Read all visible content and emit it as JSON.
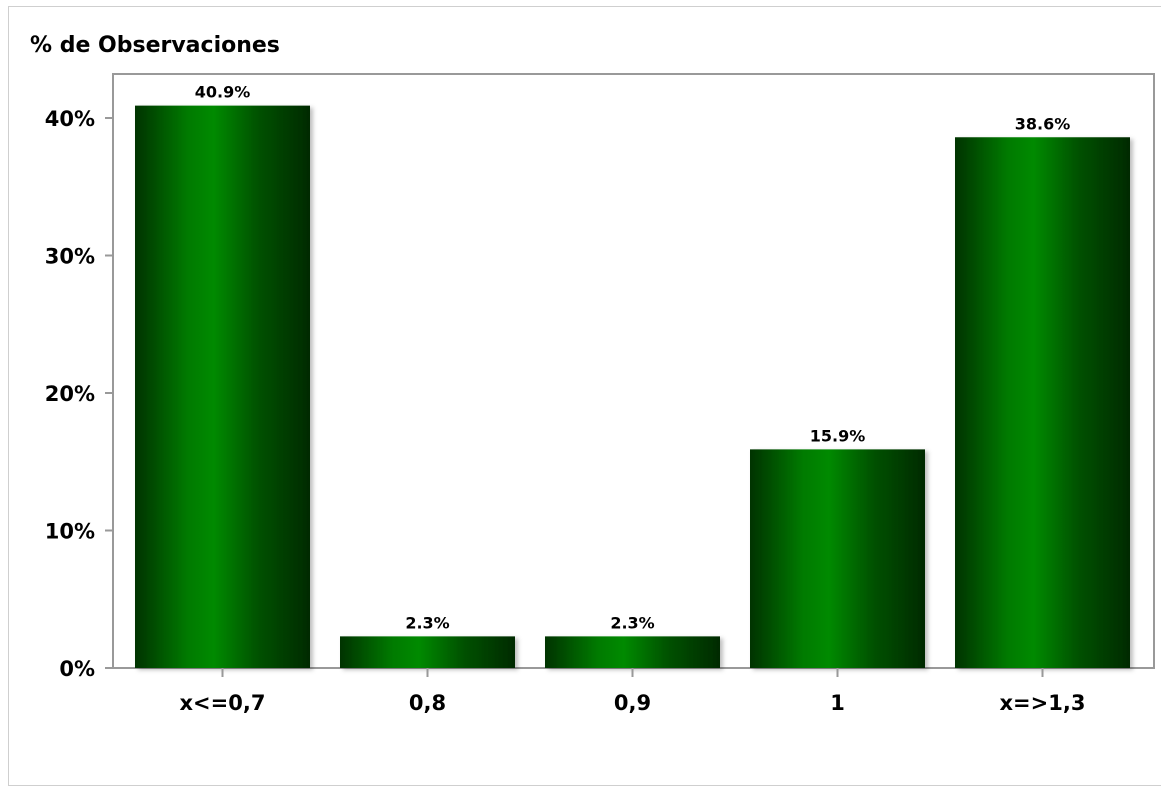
{
  "chart_data": {
    "type": "bar",
    "ylabel": "% de Observaciones",
    "categories": [
      "x<=0,7",
      "0,8",
      "0,9",
      "1",
      "x=>1,3"
    ],
    "values": [
      40.9,
      2.3,
      2.3,
      15.9,
      38.6
    ],
    "data_labels": [
      "40.9%",
      "2.3%",
      "2.3%",
      "15.9%",
      "38.6%"
    ],
    "yticks": [
      0,
      10,
      20,
      30,
      40
    ],
    "ytick_labels": [
      "0%",
      "10%",
      "20%",
      "30%",
      "40%"
    ],
    "ylim": [
      0,
      40.9
    ],
    "grid": false,
    "colors": {
      "bar_dark": "#003300",
      "bar_light": "#008a00",
      "axis": "#999999",
      "frame": "#cfcfcf"
    }
  }
}
